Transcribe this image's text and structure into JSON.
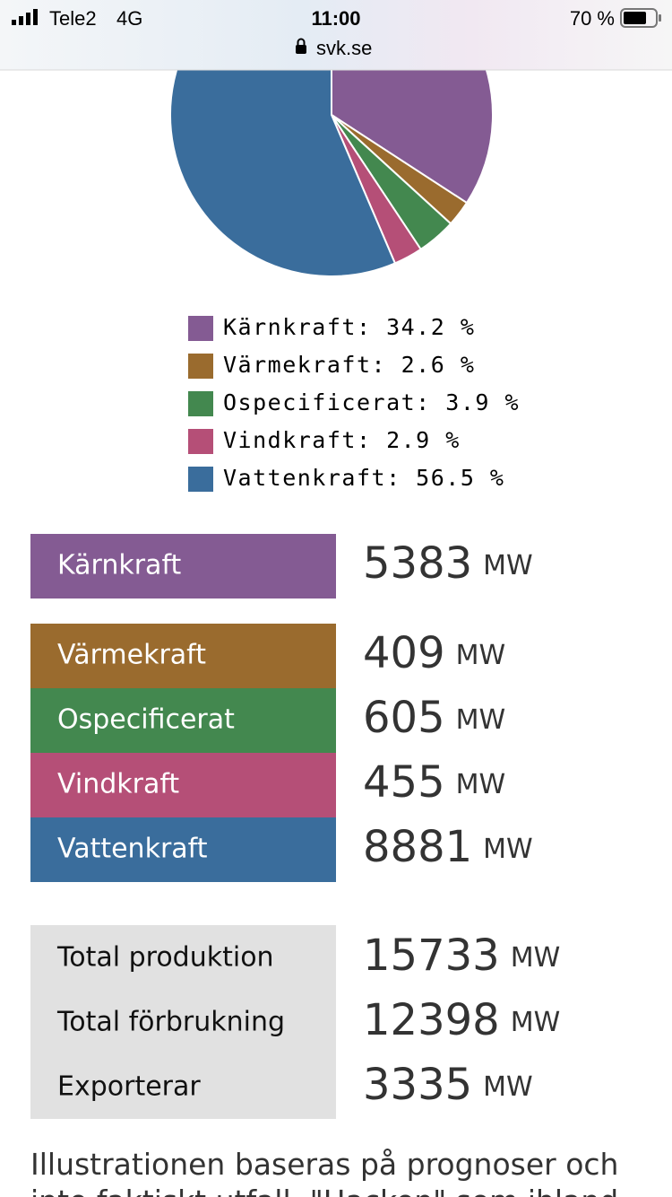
{
  "status_bar": {
    "carrier": "Tele2",
    "network": "4G",
    "time": "11:00",
    "battery": "70 %",
    "url": "svk.se"
  },
  "chart_data": {
    "type": "pie",
    "categories": [
      "Kärnkraft",
      "Värmekraft",
      "Ospecificerat",
      "Vindkraft",
      "Vattenkraft"
    ],
    "values": [
      34.2,
      2.6,
      3.9,
      2.9,
      56.5
    ],
    "value_labels": [
      "Kärnkraft: 34.2 %",
      "Värmekraft: 2.6 %",
      "Ospecificerat: 3.9 %",
      "Vindkraft: 2.9 %",
      "Vattenkraft: 56.5 %"
    ],
    "colors": [
      "#845b93",
      "#9a6b2e",
      "#43884f",
      "#b54f77",
      "#3a6d9c"
    ]
  },
  "production": {
    "unit": "MW",
    "values": [
      5383,
      409,
      605,
      455,
      8881
    ]
  },
  "totals": {
    "rows": [
      {
        "label": "Total produktion",
        "value": 15733
      },
      {
        "label": "Total förbrukning",
        "value": 12398
      },
      {
        "label": "Exporterar",
        "value": 3335
      }
    ]
  },
  "footer": {
    "lines": [
      "Illustrationen baseras på prognoser och",
      "inte faktiskt utfall. \"Hacken\" som ibland"
    ]
  }
}
